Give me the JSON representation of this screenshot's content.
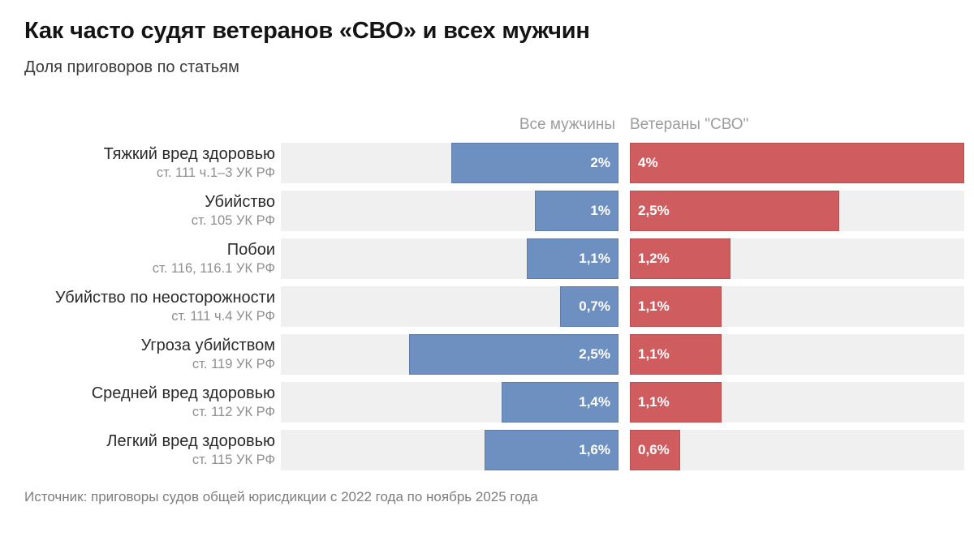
{
  "header": {
    "title": "Как часто судят ветеранов «СВО» и всех мужчин",
    "subtitle": "Доля приговоров по статьям"
  },
  "footer": {
    "source": "Источник: приговоры судов общей юрисдикции с 2022 года по ноябрь 2025 года"
  },
  "colors": {
    "men_bar": "#6e90c1",
    "veterans_bar": "#cf5d60",
    "track": "#f0f0f1",
    "column_header_text": "#9c9c9c",
    "value_text": "#ffffff"
  },
  "chart_data": {
    "type": "bar",
    "orientation": "horizontal",
    "unit": "%",
    "title": "Как часто судят ветеранов «СВО» и всех мужчин",
    "subtitle": "Доля приговоров по статьям",
    "legend_position": "top",
    "grid": false,
    "axis_range_percent": [
      0,
      4.04
    ],
    "categories": [
      {
        "label": "Тяжкий вред здоровью",
        "article": "ст. 111 ч.1–3 УК РФ"
      },
      {
        "label": "Убийство",
        "article": "ст. 105 УК РФ"
      },
      {
        "label": "Побои",
        "article": "ст. 116, 116.1 УК РФ"
      },
      {
        "label": "Убийство по неосторожности",
        "article": "ст. 111 ч.4 УК РФ"
      },
      {
        "label": "Угроза убийством",
        "article": "ст. 119 УК РФ"
      },
      {
        "label": "Средней вред здоровью",
        "article": "ст. 112 УК РФ"
      },
      {
        "label": "Легкий вред здоровью",
        "article": "ст. 115 УК РФ"
      }
    ],
    "series": [
      {
        "name": "Все мужчины",
        "color": "#6e90c1",
        "values": [
          2,
          1,
          1.1,
          0.7,
          2.5,
          1.4,
          1.6
        ],
        "labels": [
          "2%",
          "1%",
          "1,1%",
          "0,7%",
          "2,5%",
          "1,4%",
          "1,6%"
        ]
      },
      {
        "name": "Ветераны \"СВО\"",
        "color": "#cf5d60",
        "values": [
          4,
          2.5,
          1.2,
          1.1,
          1.1,
          1.1,
          0.6
        ],
        "labels": [
          "4%",
          "2,5%",
          "1,2%",
          "1,1%",
          "1,1%",
          "1,1%",
          "0,6%"
        ]
      }
    ]
  }
}
